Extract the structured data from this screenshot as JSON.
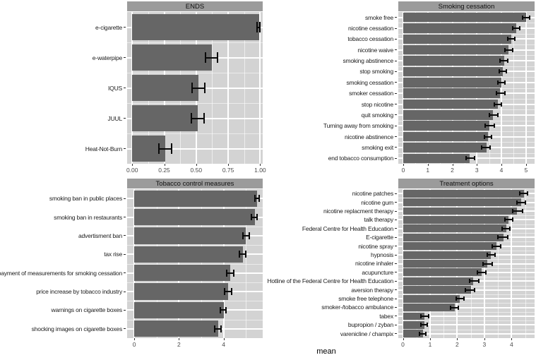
{
  "figure": {
    "xlabel": "mean",
    "colors": {
      "panel_bg": "#d3d3d3",
      "strip_bg": "#9b9b9b",
      "bar_fill": "#666666",
      "gridline": "#ffffff",
      "error_bar": "#0a0a0a",
      "background": "#ffffff"
    }
  },
  "chart_data": [
    {
      "type": "bar",
      "orientation": "horizontal",
      "title": "ENDS",
      "categories": [
        "e-cigarette",
        "e-waterpipe",
        "IQUS",
        "JUUL",
        "Heat-Not-Burn"
      ],
      "values": [
        0.99,
        0.62,
        0.52,
        0.51,
        0.26
      ],
      "error_low": [
        0.975,
        0.575,
        0.47,
        0.46,
        0.21
      ],
      "error_high": [
        1.0,
        0.665,
        0.57,
        0.56,
        0.31
      ],
      "xticks": [
        0,
        0.25,
        0.5,
        0.75,
        1.0
      ],
      "xtick_labels": [
        "0.00",
        "0.25",
        "0.50",
        "0.75",
        "1.00"
      ],
      "minor_ticks": [
        0.125,
        0.375,
        0.625,
        0.875
      ],
      "xlim": [
        -0.04,
        1.02
      ],
      "grid": true
    },
    {
      "type": "bar",
      "orientation": "horizontal",
      "title": "Smoking cessation",
      "categories": [
        "smoke free",
        "nicotine cessation",
        "tobacco cessation",
        "nicotine waive",
        "smoking abstinence",
        "stop smoking",
        "smoking cessation",
        "smoker cessation",
        "stop nicotine",
        "quit smoking",
        "Turning away from smoking",
        "nicotine abstinence",
        "smoking exit",
        "end tobacco consumption"
      ],
      "values": [
        5.0,
        4.6,
        4.4,
        4.3,
        4.1,
        4.05,
        4.0,
        3.95,
        3.85,
        3.65,
        3.5,
        3.45,
        3.4,
        2.7
      ],
      "error_low": [
        4.85,
        4.45,
        4.25,
        4.15,
        3.95,
        3.9,
        3.85,
        3.8,
        3.7,
        3.5,
        3.35,
        3.3,
        3.2,
        2.55
      ],
      "error_high": [
        5.15,
        4.75,
        4.55,
        4.45,
        4.25,
        4.2,
        4.15,
        4.15,
        4.0,
        3.85,
        3.7,
        3.6,
        3.55,
        2.9
      ],
      "xticks": [
        0,
        1,
        2,
        3,
        4,
        5
      ],
      "xtick_labels": [
        "0",
        "1",
        "2",
        "3",
        "4",
        "5"
      ],
      "minor_ticks": [
        0.5,
        1.5,
        2.5,
        3.5,
        4.5
      ],
      "xlim": [
        -0.2,
        5.35
      ],
      "grid": true
    },
    {
      "type": "bar",
      "orientation": "horizontal",
      "title": "Tobacco control measures",
      "categories": [
        "smoking ban in public places",
        "smoking ban in restaurants",
        "advertisment ban",
        "tax rise",
        "payment of measurements for smoking cessation",
        "price increase by tobacco industry",
        "warnings on cigarette boxes",
        "shocking images on cigarette boxes"
      ],
      "values": [
        5.5,
        5.4,
        5.0,
        4.85,
        4.3,
        4.2,
        4.0,
        3.75
      ],
      "error_low": [
        5.4,
        5.25,
        4.85,
        4.7,
        4.15,
        4.05,
        3.85,
        3.6
      ],
      "error_high": [
        5.6,
        5.5,
        5.15,
        5.0,
        4.45,
        4.35,
        4.1,
        3.9
      ],
      "xticks": [
        0,
        2,
        4
      ],
      "xtick_labels": [
        "0",
        "2",
        "4"
      ],
      "minor_ticks": [
        1,
        3,
        5
      ],
      "xlim": [
        -0.32,
        5.75
      ],
      "grid": true
    },
    {
      "type": "bar",
      "orientation": "horizontal",
      "title": "Treatment options",
      "categories": [
        "nicotine patches",
        "nicotine gum",
        "nicotine replacment therapy",
        "talk therapy",
        "Federal Centre for Health Education",
        "E-cigarette",
        "nicotine spray",
        "hypnosis",
        "nicotine inhaler",
        "acupuncture",
        "Hotline of the Federal Centre for Health Education",
        "aversion therapy",
        "smoke free telephone",
        "smoker-/tobacco ambulance",
        "tabex",
        "bupropion / zyban",
        "varenicline / champix"
      ],
      "values": [
        4.45,
        4.35,
        4.2,
        3.9,
        3.8,
        3.7,
        3.45,
        3.25,
        3.1,
        2.9,
        2.6,
        2.5,
        2.1,
        1.9,
        0.8,
        0.8,
        0.75
      ],
      "error_low": [
        4.3,
        4.2,
        4.05,
        3.75,
        3.65,
        3.5,
        3.3,
        3.1,
        2.95,
        2.75,
        2.45,
        2.3,
        1.95,
        1.75,
        0.65,
        0.65,
        0.6
      ],
      "error_high": [
        4.6,
        4.5,
        4.4,
        4.05,
        3.95,
        3.85,
        3.6,
        3.4,
        3.3,
        3.05,
        2.8,
        2.65,
        2.25,
        2.05,
        0.95,
        0.9,
        0.85
      ],
      "xticks": [
        0,
        1,
        2,
        3,
        4
      ],
      "xtick_labels": [
        "0",
        "1",
        "2",
        "3",
        "4"
      ],
      "minor_ticks": [
        0.5,
        1.5,
        2.5,
        3.5,
        4.5
      ],
      "xlim": [
        -0.17,
        4.85
      ],
      "grid": true
    }
  ]
}
